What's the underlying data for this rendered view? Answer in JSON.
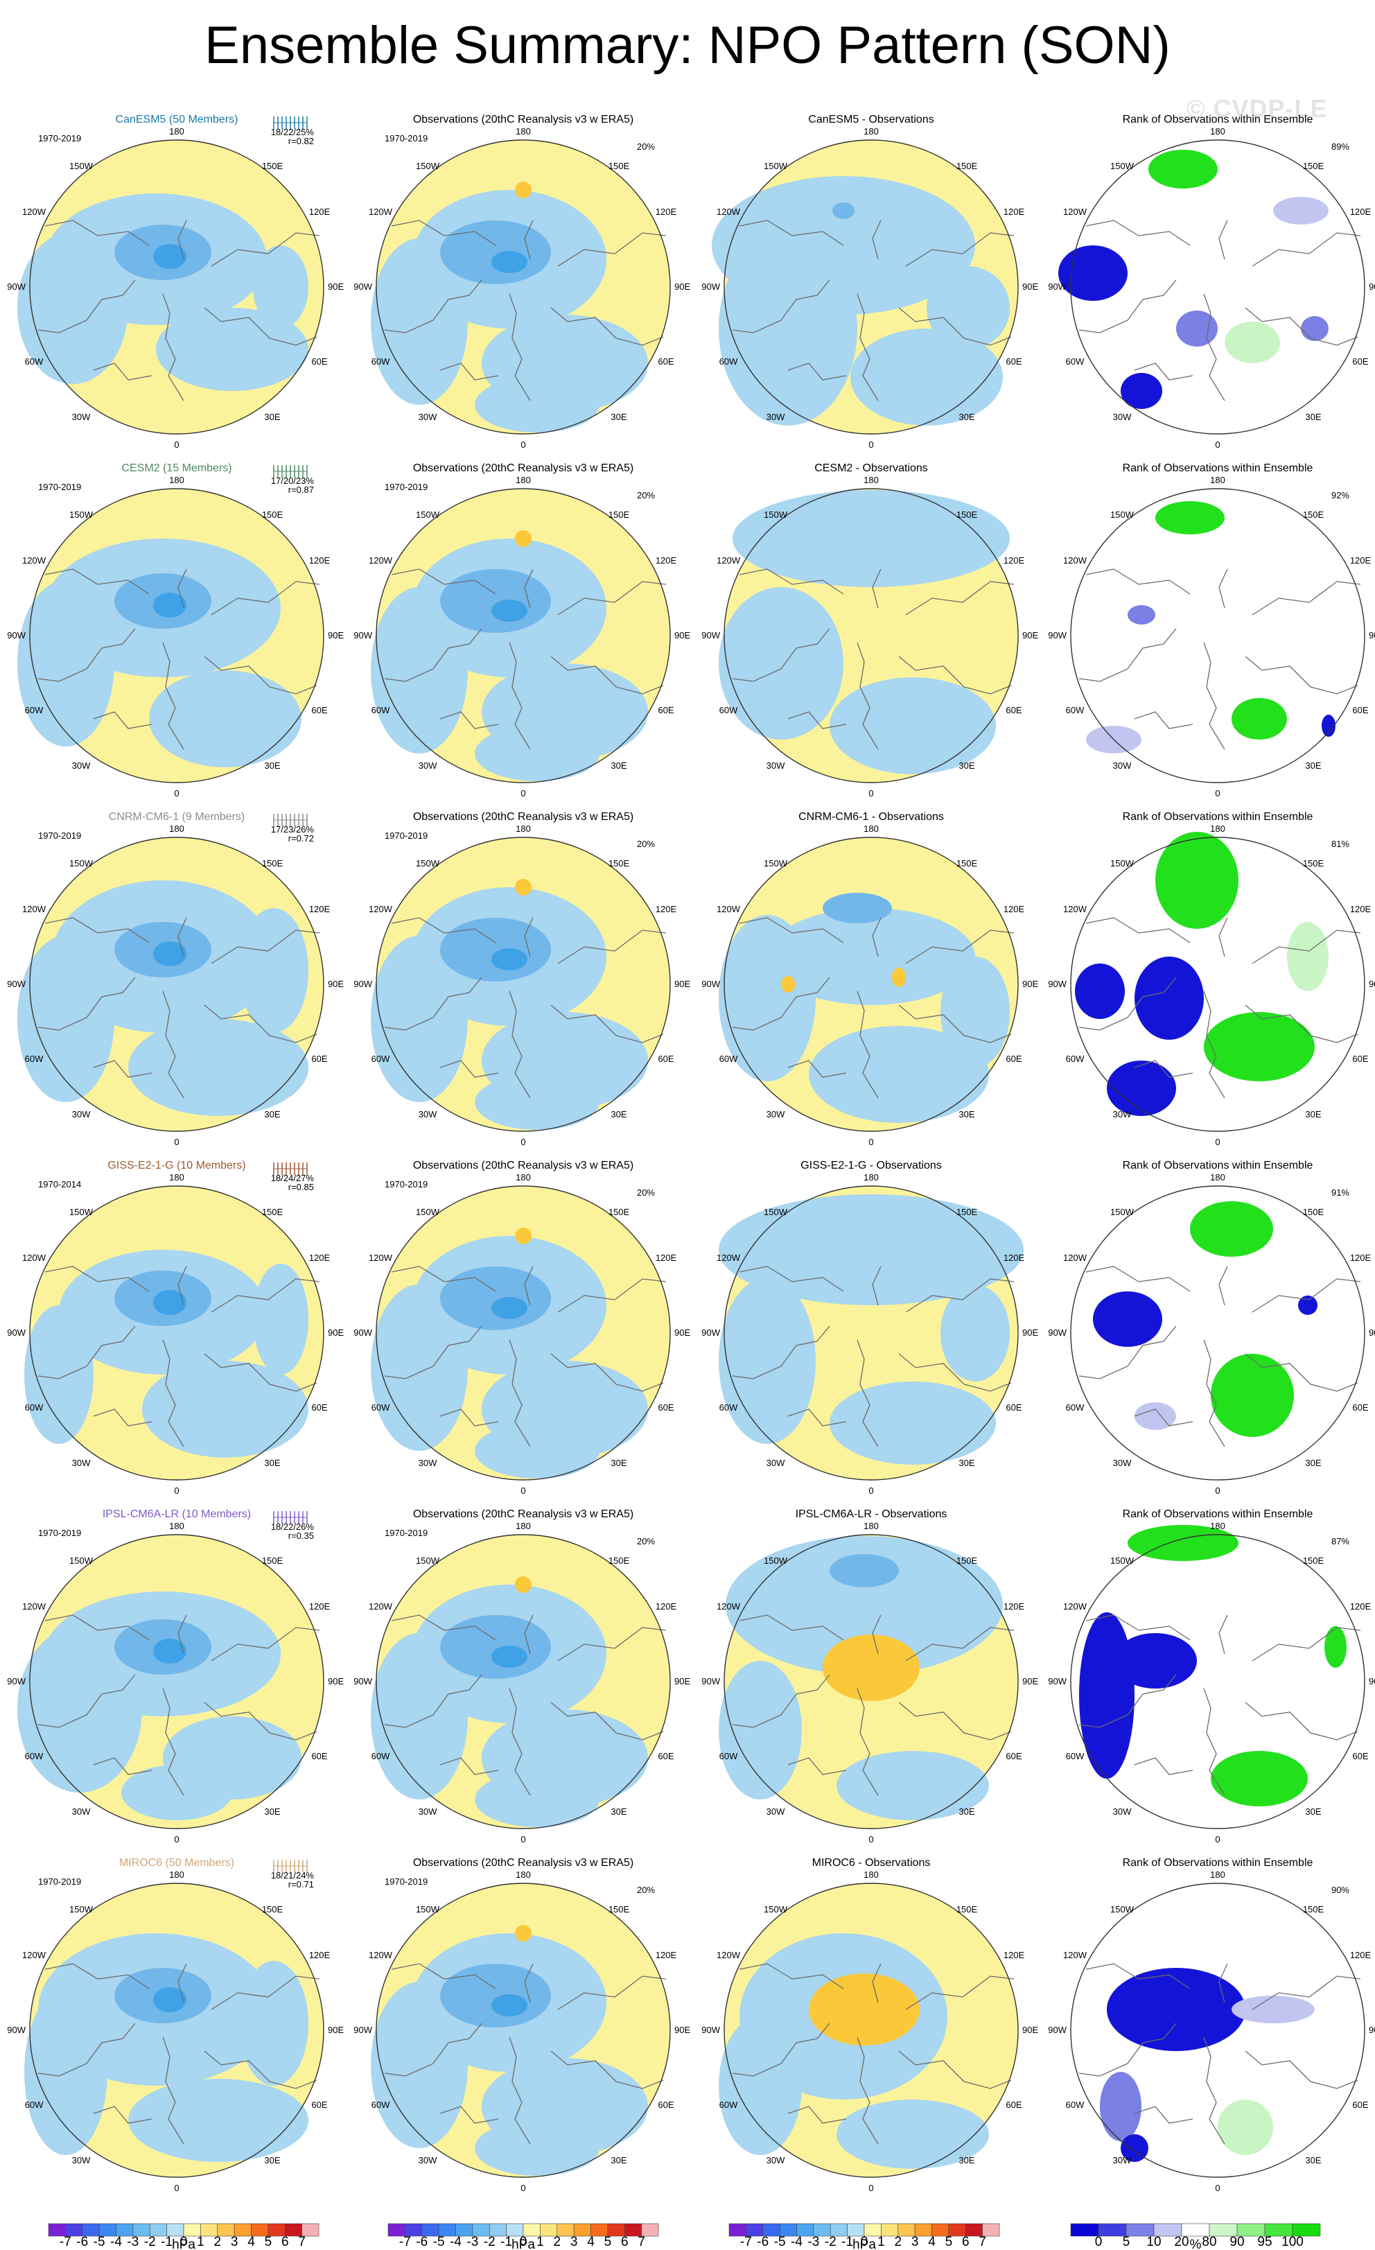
{
  "page": {
    "title": "Ensemble Summary: NPO Pattern (SON)",
    "watermark": "© CVDP-LE"
  },
  "colors": {
    "background": "#ffffff",
    "yellow": "#fbf39b",
    "light_blue": "#a9d6f0",
    "mid_blue": "#72b7ea",
    "deep_blue": "#3fa2e6",
    "orange": "#fbc83a",
    "rank_green": "#22e01c",
    "rank_light_green": "#c9f5c4",
    "rank_blue": "#1414d8",
    "rank_light_blue": "#c2c5f0",
    "rank_mid_blue": "#7a80e4"
  },
  "map_labels": {
    "top": "180",
    "bottom": "0",
    "tl": "150W",
    "tr": "150E",
    "ul": "120W",
    "ur": "120E",
    "l": "90W",
    "r": "90E",
    "ll": "60W",
    "lr": "60E",
    "bl": "30W",
    "br": "30E"
  },
  "rows": [
    {
      "model": "CanESM5 (50 Members)",
      "model_color": "#1b7aa8",
      "period": "1970-2019",
      "stats": "18/22/25%",
      "r": "r=0.82",
      "obs_title": "Observations (20thC Reanalysis v3 w ERA5)",
      "obs_period": "1970-2019",
      "obs_pct": "20%",
      "diff_title": "CanESM5 - Observations",
      "rank_title": "Rank of Observations within Ensemble",
      "rank_pct": "89%"
    },
    {
      "model": "CESM2 (15 Members)",
      "model_color": "#4e8a65",
      "period": "1970-2019",
      "stats": "17/20/23%",
      "r": "r=0.87",
      "obs_title": "Observations (20thC Reanalysis v3 w ERA5)",
      "obs_period": "1970-2019",
      "obs_pct": "20%",
      "diff_title": "CESM2 - Observations",
      "rank_title": "Rank of Observations within Ensemble",
      "rank_pct": "92%"
    },
    {
      "model": "CNRM-CM6-1 (9 Members)",
      "model_color": "#8c8c8c",
      "period": "1970-2019",
      "stats": "17/23/26%",
      "r": "r=0.72",
      "obs_title": "Observations (20thC Reanalysis v3 w ERA5)",
      "obs_period": "1970-2019",
      "obs_pct": "20%",
      "diff_title": "CNRM-CM6-1 - Observations",
      "rank_title": "Rank of Observations within Ensemble",
      "rank_pct": "81%"
    },
    {
      "model": "GISS-E2-1-G (10 Members)",
      "model_color": "#9c5a32",
      "period": "1970-2014",
      "stats": "18/24/27%",
      "r": "r=0.85",
      "obs_title": "Observations (20thC Reanalysis v3 w ERA5)",
      "obs_period": "1970-2019",
      "obs_pct": "20%",
      "diff_title": "GISS-E2-1-G - Observations",
      "rank_title": "Rank of Observations within Ensemble",
      "rank_pct": "91%"
    },
    {
      "model": "IPSL-CM6A-LR (10 Members)",
      "model_color": "#7e5ac8",
      "period": "1970-2019",
      "stats": "18/22/26%",
      "r": "r=0.35",
      "obs_title": "Observations (20thC Reanalysis v3 w ERA5)",
      "obs_period": "1970-2019",
      "obs_pct": "20%",
      "diff_title": "IPSL-CM6A-LR - Observations",
      "rank_title": "Rank of Observations within Ensemble",
      "rank_pct": "87%"
    },
    {
      "model": "MIROC6 (50 Members)",
      "model_color": "#cda67a",
      "period": "1970-2019",
      "stats": "18/21/24%",
      "r": "r=0.71",
      "obs_title": "Observations (20thC Reanalysis v3 w ERA5)",
      "obs_period": "1970-2019",
      "obs_pct": "20%",
      "diff_title": "MIROC6 - Observations",
      "rank_title": "Rank of Observations within Ensemble",
      "rank_pct": "90%"
    }
  ],
  "chart_data": {
    "type": "heatmap",
    "title": "Ensemble Summary: NPO Pattern (SON)",
    "projection": "north polar stereographic",
    "pattern_colorbar": {
      "unit": "hPa",
      "levels": [
        "-7",
        "-6",
        "-5",
        "-4",
        "-3",
        "-2",
        "-1",
        "0",
        "1",
        "2",
        "3",
        "4",
        "5",
        "6",
        "7"
      ],
      "colors": [
        "#7b1fd6",
        "#4c3fe6",
        "#3b68f0",
        "#3a86f2",
        "#4aa4f0",
        "#6cbcf0",
        "#8fcdf2",
        "#b6e0f6",
        "#fcf6a8",
        "#fde47a",
        "#fec450",
        "#fd9f2e",
        "#f66b1e",
        "#e3381c",
        "#c8161e",
        "#f5b2b6"
      ]
    },
    "rank_colorbar": {
      "unit": "%",
      "levels": [
        "0",
        "5",
        "10",
        "20",
        "80",
        "90",
        "95",
        "100"
      ],
      "colors": [
        "#0b07d8",
        "#3e3ee0",
        "#7d80e8",
        "#c3c5f2",
        "#ffffff",
        "#cdf6c8",
        "#8ff088",
        "#46e63c",
        "#16dc10"
      ]
    }
  }
}
